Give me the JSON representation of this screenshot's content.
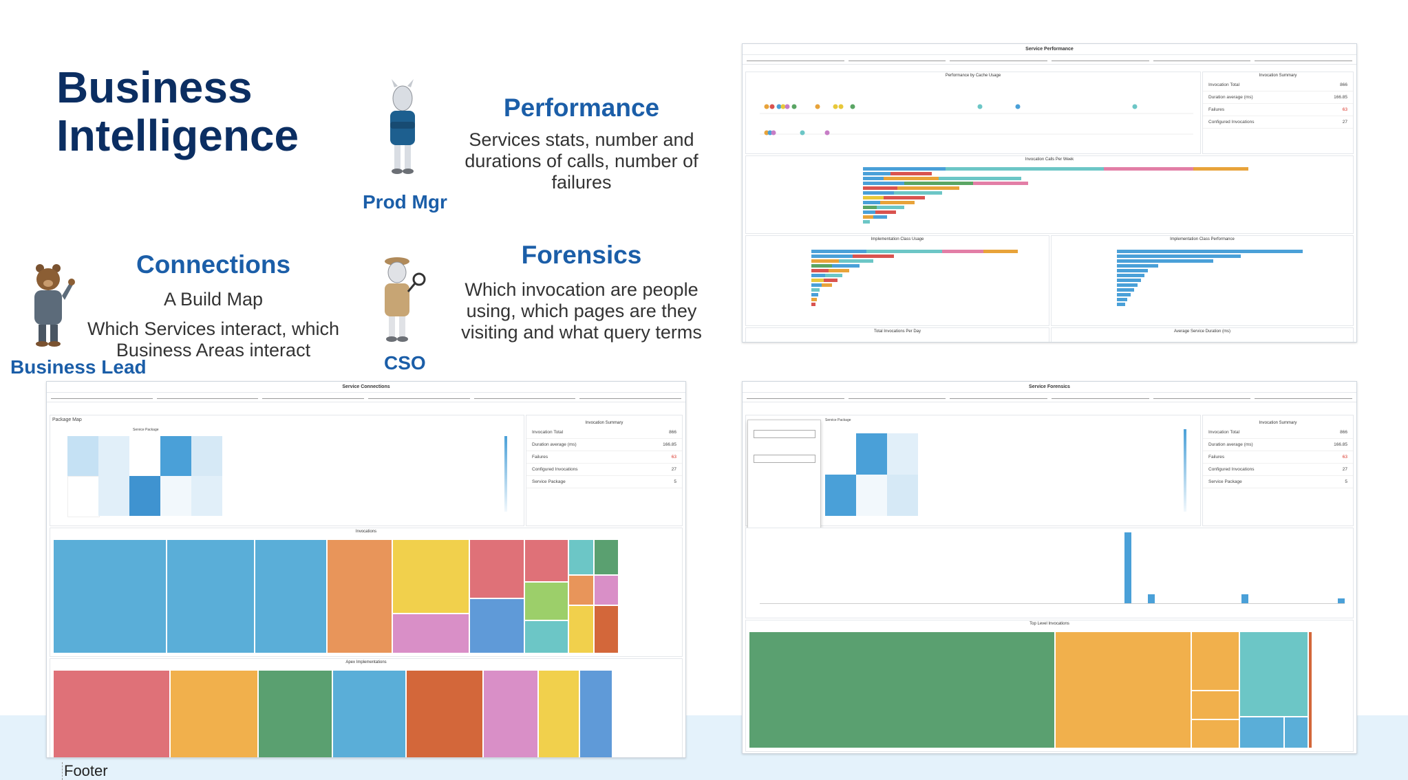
{
  "slide": {
    "title_line1": "Business",
    "title_line2": "Intelligence",
    "footer": "Footer"
  },
  "roles": {
    "prod_mgr": "Prod Mgr",
    "business_lead": "Business Lead",
    "cso": "CSO"
  },
  "sections": {
    "performance": {
      "heading": "Performance",
      "line1": "Services stats, number and",
      "line2": "durations of calls, number of",
      "line3": "failures"
    },
    "connections": {
      "heading": "Connections",
      "subheading": "A Build Map",
      "line1": "Which Services interact, which",
      "line2": "Business Areas interact"
    },
    "forensics": {
      "heading": "Forensics",
      "line1": "Which invocation are people",
      "line2": "using, which pages are they",
      "line3": "visiting and what query terms"
    }
  },
  "dashboards": {
    "performance": {
      "title": "Service Performance",
      "chart1": "Performance by Cache Usage",
      "chart2": "Invocation Calls Per Week",
      "chart3": "Implementation Class Usage",
      "chart4": "Implementation Class Performance",
      "chart5": "Total Invocations Per Day",
      "chart6": "Average Service Duration (ms)"
    },
    "connections": {
      "title": "Service Connections",
      "package_map": "Package Map",
      "invocations": "Invocations",
      "apex": "Apex Implementations",
      "service_package": "Service Package"
    },
    "forensics": {
      "title": "Service Forensics",
      "top_level": "Top Level Invocations",
      "service_package": "Service Package"
    },
    "summary": {
      "title": "Invocation Summary",
      "rows": [
        {
          "label": "Invocation Total",
          "value": "866"
        },
        {
          "label": "Duration average (ms)",
          "value": "166.85"
        },
        {
          "label": "Failures",
          "value": "63"
        },
        {
          "label": "Configured Invocations",
          "value": "27"
        },
        {
          "label": "Service Package",
          "value": "5"
        }
      ]
    }
  },
  "colors": {
    "title": "#0b2e62",
    "accent": "#1b5ea8",
    "footer_band": "#e4f2fb"
  }
}
